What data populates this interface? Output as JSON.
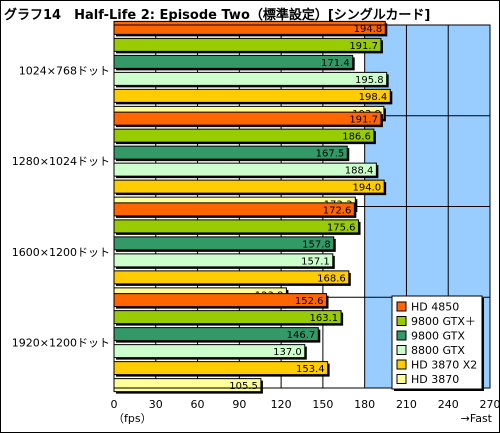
{
  "title": "グラフ14　Half-Life 2: Episode Two（標準設定）[シングルカード]",
  "chart_data": {
    "type": "bar",
    "orientation": "horizontal",
    "title": "グラフ14　Half-Life 2: Episode Two（標準設定）[シングルカード]",
    "xlabel_left": "（fps）",
    "xlabel_right": "→Fast",
    "xlim": [
      0,
      270
    ],
    "xticks": [
      0,
      30,
      60,
      90,
      120,
      150,
      180,
      210,
      240,
      270
    ],
    "grid": "vertical",
    "highlight_region": [
      180,
      270
    ],
    "legend_position": "bottom-right",
    "categories": [
      "1024×768ドット",
      "1280×1024ドット",
      "1600×1200ドット",
      "1920×1200ドット"
    ],
    "series": [
      {
        "name": "HD 4850",
        "color": "#ff6600",
        "values": [
          194.8,
          191.7,
          172.6,
          152.6
        ]
      },
      {
        "name": "9800 GTX＋",
        "color": "#99cc00",
        "values": [
          191.7,
          186.6,
          175.6,
          163.1
        ]
      },
      {
        "name": "9800 GTX",
        "color": "#339966",
        "values": [
          171.4,
          167.5,
          157.8,
          146.7
        ]
      },
      {
        "name": "8800 GTX",
        "color": "#ccffcc",
        "values": [
          195.8,
          188.4,
          157.1,
          137.0
        ]
      },
      {
        "name": "HD 3870 X2",
        "color": "#ffcc00",
        "values": [
          198.4,
          194.0,
          168.6,
          153.4
        ]
      },
      {
        "name": "HD 3870",
        "color": "#ffff99",
        "values": [
          193.8,
          173.3,
          123.8,
          105.5
        ]
      }
    ]
  },
  "colors": {
    "plot_bg": "#ffffff",
    "fast_region_bg": "#99ccff",
    "grid": "#000000"
  }
}
